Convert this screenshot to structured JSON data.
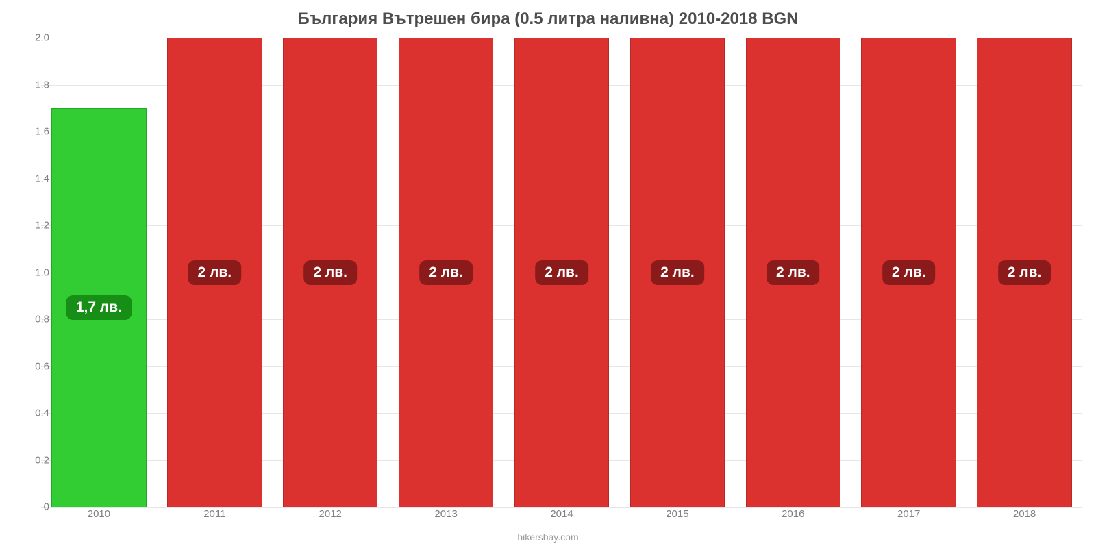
{
  "chart": {
    "type": "bar",
    "title": "България Вътрешен бира (0.5 литра наливна) 2010-2018 BGN",
    "title_fontsize": 24,
    "title_color": "#4d4d4d",
    "background_color": "#ffffff",
    "grid_color": "#e6e6e6",
    "axis_label_color": "#808080",
    "axis_fontsize": 15,
    "ylim": [
      0,
      2.0
    ],
    "yticks": [
      0,
      0.2,
      0.4,
      0.6,
      0.8,
      1.0,
      1.2,
      1.4,
      1.6,
      1.8,
      2.0
    ],
    "ytick_labels": [
      "0",
      "0.2",
      "0.4",
      "0.6",
      "0.8",
      "1.0",
      "1.2",
      "1.4",
      "1.6",
      "1.8",
      "2.0"
    ],
    "bar_width_ratio": 0.82,
    "categories": [
      "2010",
      "2011",
      "2012",
      "2013",
      "2014",
      "2015",
      "2016",
      "2017",
      "2018"
    ],
    "values": [
      1.7,
      2.0,
      2.0,
      2.0,
      2.0,
      2.0,
      2.0,
      2.0,
      2.0
    ],
    "bar_colors": [
      "#32cd32",
      "#dc322f",
      "#dc322f",
      "#dc322f",
      "#dc322f",
      "#dc322f",
      "#dc322f",
      "#dc322f",
      "#dc322f"
    ],
    "bar_stroke_colors": [
      "#28a428",
      "#b82826",
      "#b82826",
      "#b82826",
      "#b82826",
      "#b82826",
      "#b82826",
      "#b82826",
      "#b82826"
    ],
    "value_labels": [
      "1,7 лв.",
      "2 лв.",
      "2 лв.",
      "2 лв.",
      "2 лв.",
      "2 лв.",
      "2 лв.",
      "2 лв.",
      "2 лв."
    ],
    "value_label_fontsize": 21,
    "value_label_text_color": "#ffffff",
    "value_label_bg": [
      "#178f17",
      "#8b1b1b",
      "#8b1b1b",
      "#8b1b1b",
      "#8b1b1b",
      "#8b1b1b",
      "#8b1b1b",
      "#8b1b1b",
      "#8b1b1b"
    ],
    "attribution": "hikersbay.com",
    "attribution_fontsize": 14,
    "attribution_color": "#999999"
  }
}
